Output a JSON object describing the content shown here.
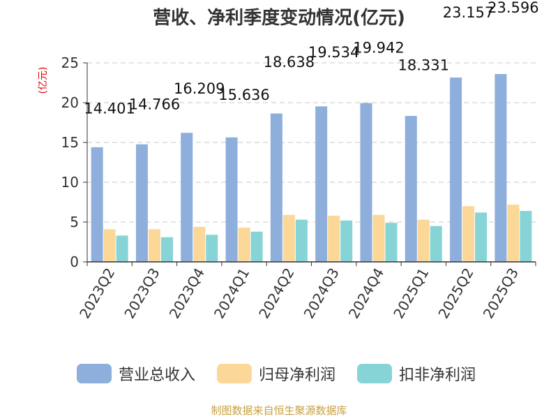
{
  "chart_data": {
    "type": "bar",
    "title": "营收、净利季度变动情况(亿元)",
    "ylabel": "(亿元)",
    "xlabel": "",
    "ylim": [
      0,
      25
    ],
    "yticks": [
      0,
      5,
      10,
      15,
      20,
      25
    ],
    "grid": true,
    "legend_position": "bottom",
    "categories": [
      "2023Q2",
      "2023Q3",
      "2023Q4",
      "2024Q1",
      "2024Q2",
      "2024Q3",
      "2024Q4",
      "2025Q1",
      "2025Q2",
      "2025Q3"
    ],
    "series": [
      {
        "name": "营业总收入",
        "color": "#8eaedb",
        "values": [
          14.401,
          14.766,
          16.209,
          15.636,
          18.638,
          19.534,
          19.942,
          18.331,
          23.157,
          23.596
        ],
        "labels": [
          "14.401",
          "14.766",
          "16.209",
          "15.636",
          "18.638",
          "19.534",
          "19.942",
          "18.331",
          "23.157",
          "23.596"
        ]
      },
      {
        "name": "归母净利润",
        "color": "#fbd898",
        "values": [
          4.1,
          4.1,
          4.4,
          4.3,
          5.9,
          5.8,
          5.9,
          5.3,
          7.0,
          7.2
        ]
      },
      {
        "name": "扣非净利润",
        "color": "#86d4d6",
        "values": [
          3.3,
          3.1,
          3.4,
          3.8,
          5.3,
          5.2,
          4.9,
          4.5,
          6.2,
          6.4
        ]
      }
    ]
  },
  "source": "制图数据来自恒生聚源数据库"
}
